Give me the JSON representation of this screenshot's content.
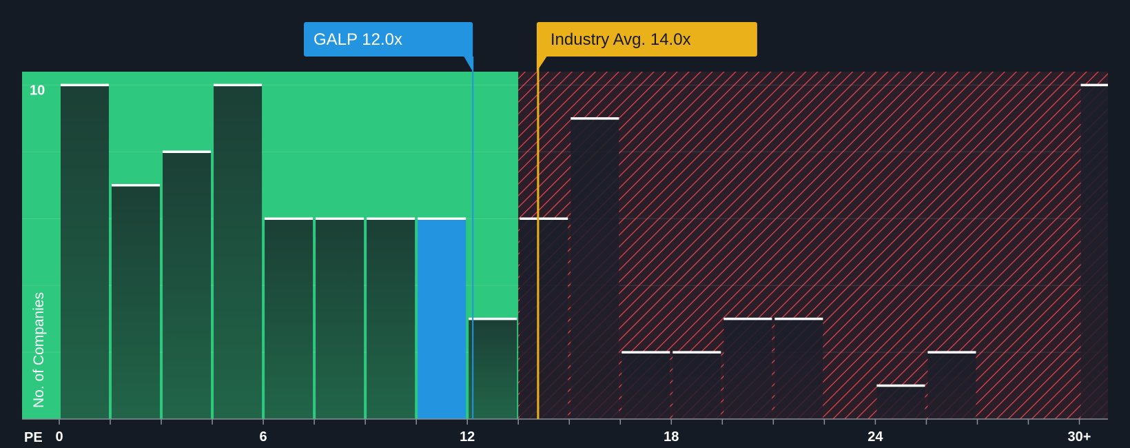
{
  "chart_data": {
    "type": "bar",
    "title": "",
    "xlabel": "PE",
    "ylabel": "No. of Companies",
    "x_tick_labels": [
      {
        "value": 0,
        "label": "0"
      },
      {
        "value": 6,
        "label": "6"
      },
      {
        "value": 12,
        "label": "12"
      },
      {
        "value": 18,
        "label": "18"
      },
      {
        "value": 24,
        "label": "24"
      },
      {
        "value": 30,
        "label": "30+"
      }
    ],
    "y_tick_labels": [
      {
        "value": 10,
        "label": "10"
      }
    ],
    "ylim": [
      0,
      10.4
    ],
    "xlim": [
      -1.1,
      30.8
    ],
    "bin_width": 1.5,
    "bins": [
      {
        "start": 0.0,
        "count": 10
      },
      {
        "start": 1.5,
        "count": 7
      },
      {
        "start": 3.0,
        "count": 8
      },
      {
        "start": 4.5,
        "count": 10
      },
      {
        "start": 6.0,
        "count": 6
      },
      {
        "start": 7.5,
        "count": 6
      },
      {
        "start": 9.0,
        "count": 6
      },
      {
        "start": 10.5,
        "count": 6,
        "highlight": true
      },
      {
        "start": 12.0,
        "count": 3
      },
      {
        "start": 13.5,
        "count": 6
      },
      {
        "start": 15.0,
        "count": 9
      },
      {
        "start": 16.5,
        "count": 2
      },
      {
        "start": 18.0,
        "count": 2
      },
      {
        "start": 19.5,
        "count": 3
      },
      {
        "start": 21.0,
        "count": 3
      },
      {
        "start": 22.5,
        "count": 0
      },
      {
        "start": 24.0,
        "count": 1
      },
      {
        "start": 25.5,
        "count": 2
      },
      {
        "start": 27.0,
        "count": 0
      },
      {
        "start": 28.5,
        "count": 0
      },
      {
        "start": 30.0,
        "count": 10
      }
    ],
    "fair_zone_end": 13.5,
    "company": {
      "label": "GALP 12.0x",
      "value": 12.0
    },
    "industry": {
      "label": "Industry Avg. 14.0x",
      "value": 14.0
    },
    "colors": {
      "background": "#151b24",
      "fair_zone": "#2ec97e",
      "bar_in_fair": "#1c4b3a",
      "bar_in_over": "#1c2230",
      "highlight_bar": "#2394e0",
      "over_zone": "#2a1f29",
      "hatch": "#e0464f",
      "company_badge": "#2394e0",
      "industry_badge": "#ebb11b",
      "cap_line": "#ffffff",
      "text": "#ffffff"
    }
  }
}
